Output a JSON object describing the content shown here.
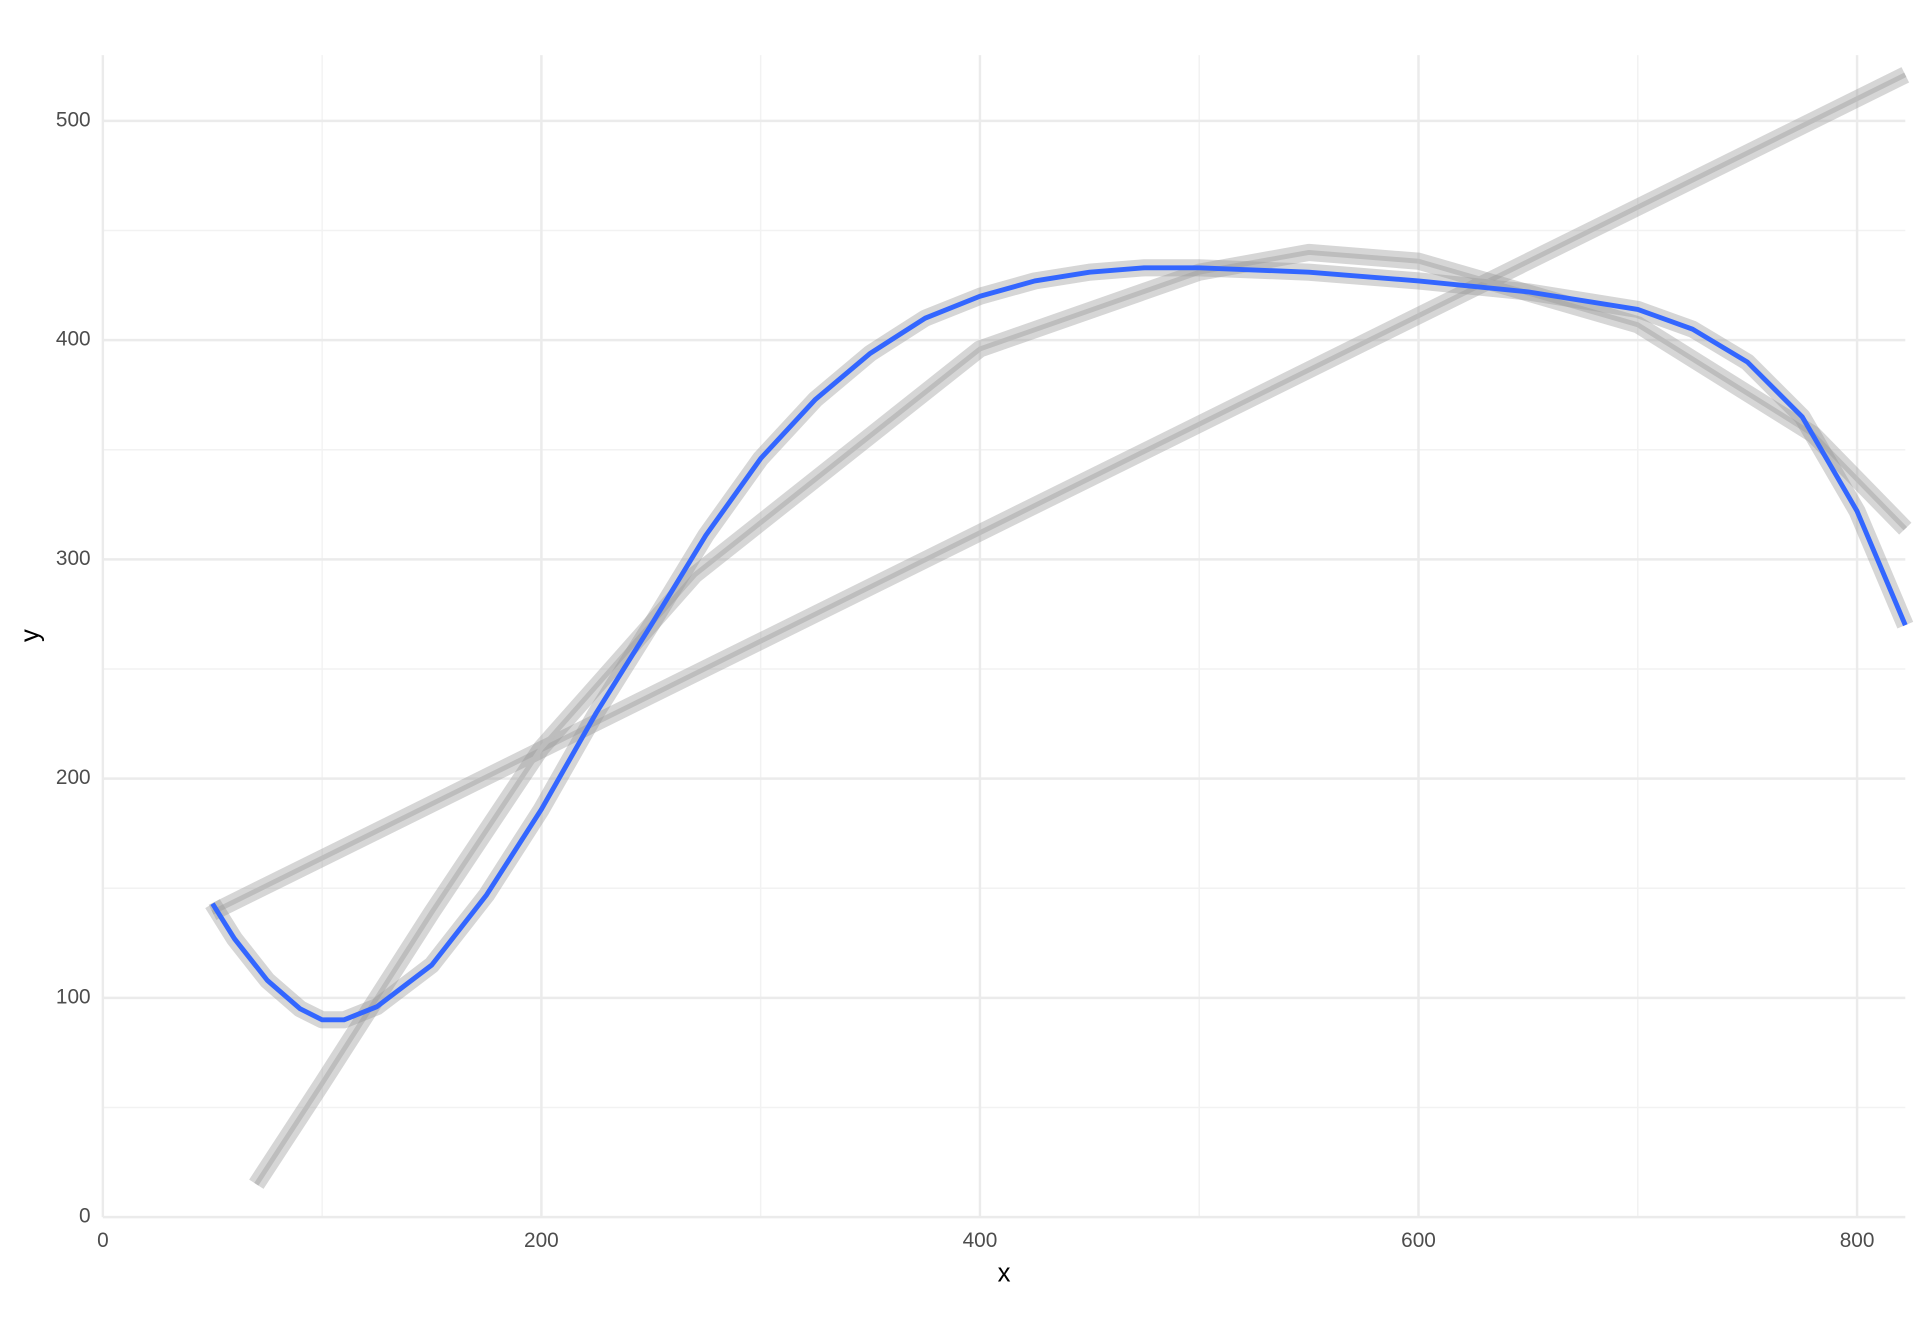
{
  "chart_data": {
    "type": "line",
    "x_label": "x",
    "y_label": "y",
    "xlim": [
      0,
      822
    ],
    "ylim": [
      0,
      530
    ],
    "xticks": [
      0,
      200,
      400,
      600,
      800
    ],
    "yticks": [
      0,
      100,
      200,
      300,
      400,
      500
    ],
    "xminor": [
      100,
      300,
      500,
      700
    ],
    "yminor": [
      50,
      150,
      250,
      350,
      450
    ],
    "grid": true,
    "series": [
      {
        "color": "#bdbdbd",
        "x": [
          50,
          822
        ],
        "y": [
          139,
          521
        ]
      },
      {
        "color": "#bdbdbd",
        "x": [
          70,
          100,
          150,
          200,
          270,
          400,
          500,
          550,
          600,
          700,
          780,
          822
        ],
        "y": [
          15,
          61,
          139,
          214,
          293,
          396,
          431,
          440,
          436,
          407,
          357,
          314
        ]
      },
      {
        "color": "#3366ff",
        "x": [
          50,
          60,
          75,
          90,
          100,
          110,
          125,
          150,
          175,
          200,
          225,
          250,
          275,
          300,
          325,
          350,
          375,
          400,
          425,
          450,
          475,
          500,
          550,
          600,
          650,
          700,
          725,
          750,
          775,
          800,
          822
        ],
        "y": [
          143,
          127,
          108,
          95,
          90,
          90,
          96,
          115,
          147,
          186,
          230,
          270,
          311,
          346,
          373,
          394,
          410,
          420,
          427,
          431,
          433,
          433,
          431,
          427,
          422,
          414,
          405,
          390,
          365,
          322,
          270
        ]
      }
    ]
  }
}
